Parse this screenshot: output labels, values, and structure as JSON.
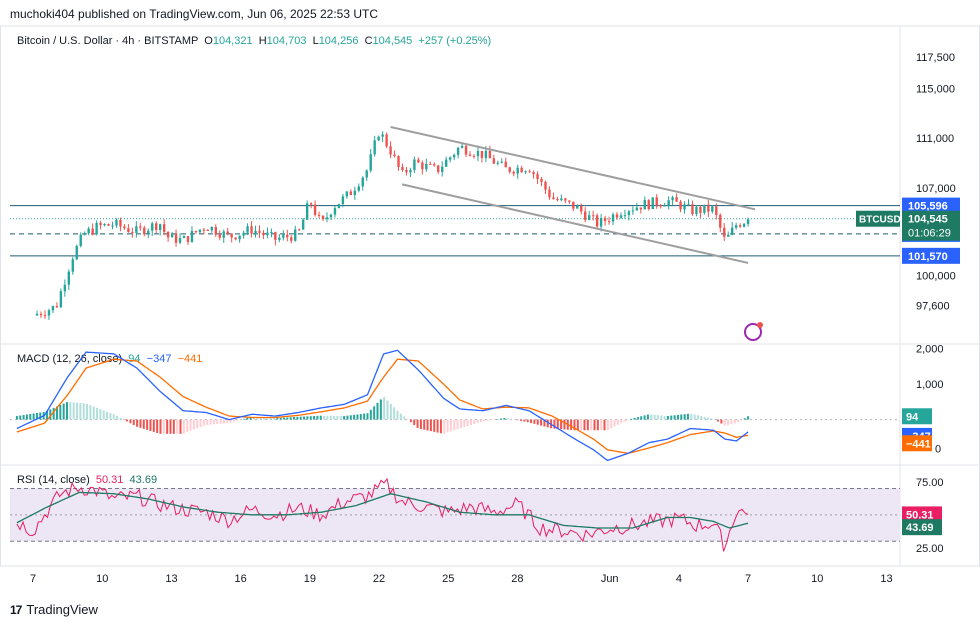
{
  "publisher_line": "muchoki404 published on TradingView.com, Jun 06, 2025 22:53 UTC",
  "brand": {
    "logo": "17",
    "name": "TradingView"
  },
  "header": {
    "symbol": "Bitcoin / U.S. Dollar · 4h · BITSTAMP",
    "open_label": "O",
    "open": "104,321",
    "high_label": "H",
    "high": "104,703",
    "low_label": "L",
    "low": "104,256",
    "close_label": "C",
    "close": "104,545",
    "change": "+257 (+0.25%)"
  },
  "colors": {
    "up": "#26a69a",
    "down": "#ef5350",
    "level": "#1e5b74",
    "accent": "#2962ff",
    "signal": "#ff6d00",
    "rsi": "#e91e63",
    "rsi_ma": "#1e7a63",
    "trend": "#9e9e9e",
    "rsi_band": "#ece6f5"
  },
  "price_axis": {
    "ticks": [
      "117,500",
      "115,000",
      "111,000",
      "107,000",
      "100,000",
      "97,600"
    ],
    "tick_values": [
      117500,
      115000,
      111000,
      107000,
      100000,
      97600
    ],
    "ylim": [
      94500,
      120000
    ],
    "levels": [
      {
        "label": "105,596",
        "value": 105596,
        "style": "solid"
      },
      {
        "label": "103,329",
        "value": 103329,
        "style": "dashed"
      },
      {
        "label": "101,570",
        "value": 101570,
        "style": "solid"
      }
    ],
    "current": {
      "symbol": "BTCUSD",
      "price": "104,545",
      "countdown": "01:06:29",
      "value": 104545
    }
  },
  "time_axis": {
    "labels": [
      "7",
      "10",
      "13",
      "16",
      "19",
      "22",
      "25",
      "28",
      "Jun",
      "4",
      "7",
      "10",
      "13"
    ],
    "label_days": [
      7,
      10,
      13,
      16,
      19,
      22,
      25,
      28,
      32,
      35,
      38,
      41,
      44
    ],
    "xlim": [
      6,
      44.5
    ]
  },
  "chart_data": [
    {
      "type": "candlestick",
      "title": "Bitcoin / U.S. Dollar · 4h · BITSTAMP",
      "interval": "4h",
      "x_unit": "day (May 7 2025 = 7; Jun 1 = 32)",
      "anchors": {
        "x": [
          7,
          8,
          8.7,
          9.2,
          9.8,
          10.5,
          11.5,
          12.5,
          12.8,
          13.5,
          14.5,
          15.5,
          16.5,
          17.5,
          18.5,
          19,
          19.5,
          20,
          20.7,
          21.5,
          22,
          22.5,
          23,
          23.5,
          24.5,
          25.5,
          26.5,
          27.5,
          28.5,
          29.5,
          30.5,
          31.5,
          32.5,
          33.5,
          34.5,
          35,
          35.5,
          36.5,
          37,
          37.5,
          38
        ],
        "close": [
          96800,
          97500,
          101500,
          103300,
          103900,
          104100,
          103500,
          104200,
          103100,
          102800,
          104000,
          103100,
          103700,
          102900,
          103300,
          106000,
          104000,
          105500,
          106500,
          108500,
          111600,
          110000,
          108000,
          109100,
          108400,
          110300,
          109700,
          108500,
          108700,
          106200,
          105500,
          104100,
          105200,
          105700,
          106000,
          105700,
          105200,
          105300,
          102700,
          104100,
          104500
        ]
      },
      "bar_count": 180,
      "trend_channel": {
        "upper": {
          "from": [
            22.5,
            111900
          ],
          "to": [
            38.3,
            105300
          ]
        },
        "lower": {
          "from": [
            23,
            107300
          ],
          "to": [
            38,
            101000
          ]
        }
      }
    },
    {
      "type": "line",
      "title": "MACD (12, 26, close)",
      "values_shown": {
        "hist": "94",
        "macd": "−347",
        "signal": "−441"
      },
      "ticks": [
        "2,000",
        "1,000"
      ],
      "tick_values": [
        2000,
        1000
      ],
      "ylim": [
        -1250,
        2100
      ],
      "badges": [
        {
          "label": "94",
          "value": 94
        },
        {
          "label": "−347",
          "value": -347
        },
        {
          "label": "−441",
          "value": -441
        }
      ],
      "partial_tick": "0",
      "macd_anchors": {
        "x": [
          6.3,
          7.5,
          8.5,
          9.3,
          10.5,
          11.5,
          12.5,
          13.5,
          14.5,
          15.5,
          16.5,
          17.5,
          18.5,
          19.5,
          20.5,
          21.5,
          22.2,
          22.8,
          23.7,
          24.8,
          25.5,
          26.5,
          27.5,
          28.5,
          29.5,
          30.5,
          31.3,
          31.9,
          32.8,
          33.7,
          34.5,
          35.5,
          36.5,
          37,
          37.5,
          38
        ],
        "values": [
          -250,
          120,
          1200,
          1900,
          1850,
          1450,
          800,
          250,
          200,
          0,
          150,
          100,
          200,
          330,
          430,
          700,
          1850,
          1950,
          1400,
          600,
          300,
          250,
          400,
          250,
          -150,
          -550,
          -850,
          -1150,
          -950,
          -650,
          -550,
          -250,
          -300,
          -550,
          -600,
          -347
        ]
      },
      "signal_anchors": {
        "x": [
          6.3,
          7.5,
          8.5,
          9.3,
          10.5,
          11.5,
          12.5,
          13.5,
          14.5,
          15.5,
          16.5,
          17.5,
          18.5,
          19.5,
          20.5,
          21.5,
          22.2,
          22.8,
          23.7,
          24.8,
          25.5,
          26.5,
          27.5,
          28.5,
          29.5,
          30.5,
          31.3,
          31.9,
          32.8,
          33.7,
          34.5,
          35.5,
          36.5,
          37,
          37.5,
          38
        ],
        "values": [
          -350,
          -100,
          700,
          1450,
          1700,
          1650,
          1200,
          650,
          350,
          100,
          60,
          60,
          120,
          220,
          330,
          520,
          1200,
          1700,
          1650,
          1000,
          550,
          300,
          350,
          330,
          100,
          -250,
          -550,
          -850,
          -950,
          -800,
          -650,
          -420,
          -320,
          -380,
          -500,
          -441
        ]
      }
    },
    {
      "type": "line",
      "title": "RSI (14, close)",
      "values_shown": {
        "rsi": "50.31",
        "ma": "43.69"
      },
      "ticks": [
        "75.00",
        "25.00"
      ],
      "tick_values": [
        75,
        25
      ],
      "bands": {
        "upper": 70,
        "middle": 50,
        "lower": 30
      },
      "ylim": [
        12,
        87
      ],
      "badges": [
        {
          "label": "50.31",
          "value": 50.31
        },
        {
          "label": "43.69",
          "value": 43.69
        }
      ],
      "rsi_anchors": {
        "x": [
          6.3,
          7,
          7.7,
          8.2,
          9,
          9.8,
          10.5,
          11.5,
          12.5,
          13.5,
          14.5,
          15.5,
          16.5,
          17.5,
          18.5,
          19.5,
          20.5,
          21.5,
          22.3,
          23,
          24,
          25,
          26,
          27,
          28,
          29,
          30,
          31,
          32,
          33,
          34,
          35,
          35.8,
          36.5,
          37,
          37.5,
          38
        ],
        "values": [
          45,
          38,
          55,
          66,
          71,
          68,
          62,
          64,
          58,
          54,
          52,
          46,
          54,
          50,
          55,
          50,
          60,
          64,
          73,
          60,
          56,
          52,
          56,
          52,
          58,
          40,
          38,
          35,
          40,
          42,
          45,
          47,
          42,
          44,
          26,
          54,
          50.31
        ]
      },
      "ma_anchors": {
        "x": [
          6.3,
          7.5,
          9,
          10.5,
          12,
          13.5,
          15,
          16.5,
          18,
          19.5,
          21,
          22.5,
          24,
          25.5,
          27,
          28.5,
          30,
          31.5,
          33,
          34.5,
          35.5,
          36.5,
          37.2,
          38
        ],
        "values": [
          44,
          55,
          67,
          66,
          62,
          56,
          52,
          50,
          50,
          52,
          57,
          66,
          60,
          52,
          50,
          50,
          42,
          40,
          40,
          48,
          48,
          45,
          40,
          43.69
        ]
      }
    }
  ]
}
